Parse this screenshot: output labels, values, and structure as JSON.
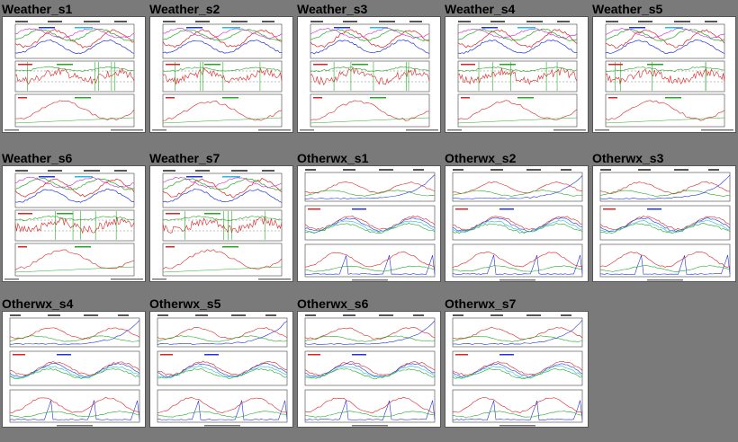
{
  "page": {
    "background": "#7a7a7a"
  },
  "thumbnails": [
    {
      "title": "Weather_s1",
      "style": "weather"
    },
    {
      "title": "Weather_s2",
      "style": "weather"
    },
    {
      "title": "Weather_s3",
      "style": "weather"
    },
    {
      "title": "Weather_s4",
      "style": "weather"
    },
    {
      "title": "Weather_s5",
      "style": "weather"
    },
    {
      "title": "Weather_s6",
      "style": "weather"
    },
    {
      "title": "Weather_s7",
      "style": "weather"
    },
    {
      "title": "Otherwx_s1",
      "style": "otherwx"
    },
    {
      "title": "Otherwx_s2",
      "style": "otherwx"
    },
    {
      "title": "Otherwx_s3",
      "style": "otherwx"
    },
    {
      "title": "Otherwx_s4",
      "style": "otherwx"
    },
    {
      "title": "Otherwx_s5",
      "style": "otherwx"
    },
    {
      "title": "Otherwx_s6",
      "style": "otherwx"
    },
    {
      "title": "Otherwx_s7",
      "style": "otherwx"
    }
  ],
  "series_colors": {
    "red": "#dd2222",
    "green": "#22aa22",
    "blue": "#2233dd",
    "cyan": "#22bbdd",
    "magenta": "#cc22cc"
  }
}
